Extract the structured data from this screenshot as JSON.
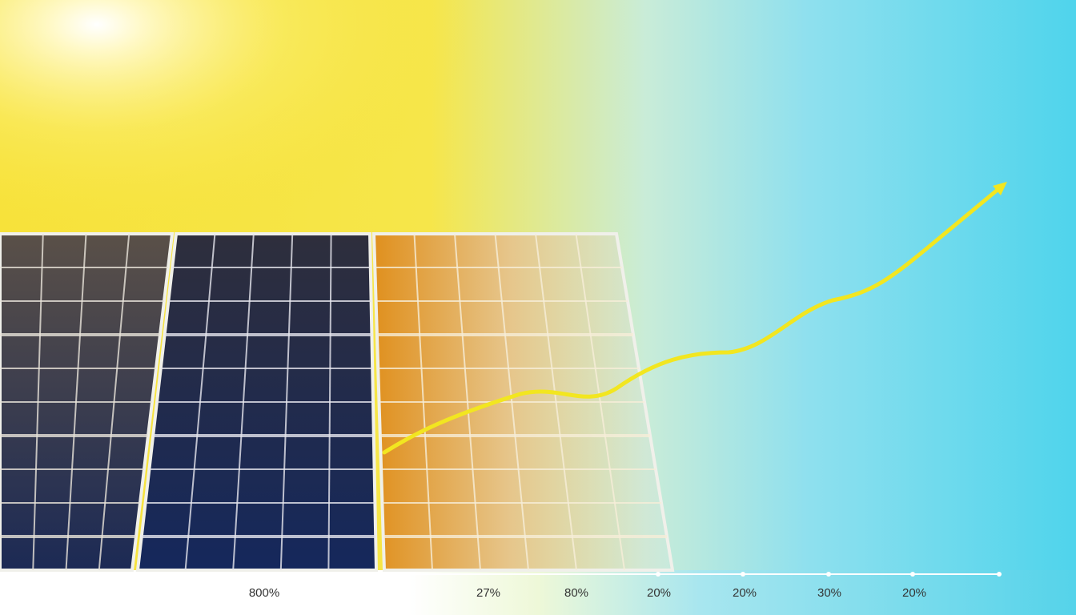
{
  "axis_labels": [
    "800%",
    "27%",
    "80%",
    "20%",
    "20%",
    "30%",
    "20%"
  ]
}
